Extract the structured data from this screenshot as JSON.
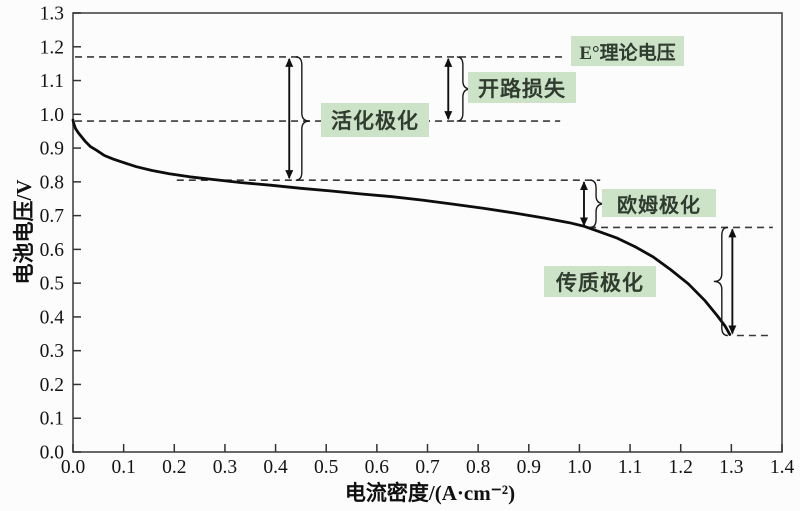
{
  "chart_data": {
    "type": "line",
    "title": "",
    "xlabel": "电流密度/(A·cm⁻²)",
    "ylabel": "电池电压/V",
    "xlim": [
      0.0,
      1.4
    ],
    "ylim": [
      0.0,
      1.3
    ],
    "grid": "off",
    "x_ticks": [
      "0.0",
      "0.1",
      "0.2",
      "0.3",
      "0.4",
      "0.5",
      "0.6",
      "0.7",
      "0.8",
      "0.9",
      "1.0",
      "1.1",
      "1.2",
      "1.3",
      "1.4"
    ],
    "y_ticks": [
      "0.0",
      "0.1",
      "0.2",
      "0.3",
      "0.4",
      "0.5",
      "0.6",
      "0.7",
      "0.8",
      "0.9",
      "1.0",
      "1.1",
      "1.2",
      "1.3"
    ],
    "series": [
      {
        "points": [
          [
            0.0,
            0.983
          ],
          [
            0.002,
            0.97
          ],
          [
            0.005,
            0.958
          ],
          [
            0.01,
            0.946
          ],
          [
            0.016,
            0.935
          ],
          [
            0.024,
            0.92
          ],
          [
            0.034,
            0.905
          ],
          [
            0.047,
            0.893
          ],
          [
            0.062,
            0.878
          ],
          [
            0.08,
            0.867
          ],
          [
            0.1,
            0.857
          ],
          [
            0.125,
            0.845
          ],
          [
            0.155,
            0.834
          ],
          [
            0.19,
            0.824
          ],
          [
            0.23,
            0.815
          ],
          [
            0.277,
            0.807
          ],
          [
            0.33,
            0.798
          ],
          [
            0.39,
            0.79
          ],
          [
            0.45,
            0.781
          ],
          [
            0.51,
            0.773
          ],
          [
            0.57,
            0.764
          ],
          [
            0.63,
            0.756
          ],
          [
            0.69,
            0.746
          ],
          [
            0.75,
            0.734
          ],
          [
            0.81,
            0.722
          ],
          [
            0.87,
            0.708
          ],
          [
            0.93,
            0.693
          ],
          [
            0.98,
            0.679
          ],
          [
            1.01,
            0.668
          ],
          [
            1.04,
            0.652
          ],
          [
            1.075,
            0.633
          ],
          [
            1.11,
            0.608
          ],
          [
            1.145,
            0.578
          ],
          [
            1.18,
            0.54
          ],
          [
            1.215,
            0.498
          ],
          [
            1.248,
            0.448
          ],
          [
            1.272,
            0.404
          ],
          [
            1.288,
            0.372
          ],
          [
            1.297,
            0.348
          ]
        ]
      }
    ],
    "guides": [
      {
        "value": 1.17,
        "x1": 0.004,
        "x2": 0.968
      },
      {
        "value": 0.98,
        "x1": 0.004,
        "x2": 0.962
      },
      {
        "value": 0.805,
        "x1": 0.205,
        "x2": 1.041
      },
      {
        "value": 0.665,
        "x1": 1.019,
        "x2": 1.382
      },
      {
        "value": 0.345,
        "x1": 1.311,
        "x2": 1.376
      }
    ],
    "arrows": [
      {
        "x": 0.427,
        "v_top": 1.17,
        "v_bottom": 0.805,
        "brace_x": 0.44,
        "brace_dir": "right",
        "tip_v": 0.98
      },
      {
        "x": 0.741,
        "v_top": 1.17,
        "v_bottom": 0.98,
        "brace_x": 0.758,
        "brace_dir": "right",
        "tip_v": 1.075
      },
      {
        "x": 1.009,
        "v_top": 0.805,
        "v_bottom": 0.665,
        "brace_x": 1.021,
        "brace_dir": "right",
        "tip_v": 0.735
      },
      {
        "x": 1.302,
        "v_top": 0.665,
        "v_bottom": 0.345,
        "brace_x": 1.293,
        "brace_dir": "left",
        "tip_v": 0.505
      }
    ],
    "annotations": [
      {
        "label": "E°理论电压",
        "value": 1.17
      },
      {
        "label": "开路损失",
        "loss_from": 1.17,
        "loss_to": 0.98
      },
      {
        "label": "活化极化",
        "loss_from": 1.17,
        "loss_to": 0.805
      },
      {
        "label": "欧姆极化",
        "loss_from": 0.805,
        "loss_to": 0.665
      },
      {
        "label": "传质极化",
        "loss_from": 0.665,
        "loss_to": 0.345
      }
    ]
  },
  "colors": {
    "annotation_bg": "#cde3c8",
    "annotation_text": "#2f3c2f",
    "curve": "#0d0d0d",
    "guide": "#3a3a3a",
    "axis": "#454545"
  }
}
